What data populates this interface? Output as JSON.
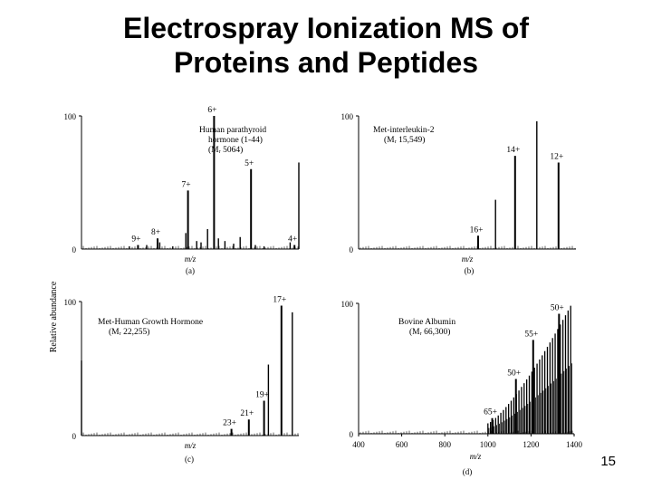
{
  "slide": {
    "title_line1": "Electrospray Ionization MS of",
    "title_line2": "Proteins and Peptides",
    "page_number": "15",
    "shared_ylabel": "Relative abundance"
  },
  "chart_data": [
    {
      "type": "bar",
      "panel_label": "(a)",
      "annotation_lines": [
        "Human parathyroid",
        "hormone (1-44)",
        "(Mᵣ 5064)"
      ],
      "xlabel": "m/z",
      "ylim": [
        0,
        100
      ],
      "yticks": [
        "100",
        "0"
      ],
      "xlim": [
        0,
        100
      ],
      "peaks": [
        {
          "label": "9+",
          "x": 26,
          "y": 3
        },
        {
          "label": "8+",
          "x": 35,
          "y": 8
        },
        {
          "label": "7+",
          "x": 49,
          "y": 44
        },
        {
          "label": "6+",
          "x": 61,
          "y": 100
        },
        {
          "label": "5+",
          "x": 78,
          "y": 60
        },
        {
          "label": "4+",
          "x": 98,
          "y": 3
        }
      ],
      "minor_peaks": [
        [
          22,
          2
        ],
        [
          30,
          3
        ],
        [
          36,
          5
        ],
        [
          42,
          2
        ],
        [
          48,
          12
        ],
        [
          53,
          6
        ],
        [
          55,
          5
        ],
        [
          58,
          15
        ],
        [
          63,
          8
        ],
        [
          66,
          6
        ],
        [
          70,
          4
        ],
        [
          73,
          9
        ],
        [
          80,
          3
        ],
        [
          84,
          2
        ],
        [
          96,
          5
        ],
        [
          100,
          65
        ]
      ]
    },
    {
      "type": "bar",
      "panel_label": "(b)",
      "annotation_lines": [
        "Met-interleukin-2",
        "(Mᵣ 15,549)"
      ],
      "xlabel": "m/z",
      "ylim": [
        0,
        100
      ],
      "yticks": [
        "100",
        "0"
      ],
      "xlim": [
        0,
        100
      ],
      "peaks": [
        {
          "label": "16+",
          "x": 55,
          "y": 10
        },
        {
          "label": "14+",
          "x": 72,
          "y": 70
        },
        {
          "label": "12+",
          "x": 92,
          "y": 65
        }
      ],
      "minor_peaks": [
        [
          63,
          37
        ],
        [
          82,
          96
        ]
      ]
    },
    {
      "type": "bar",
      "panel_label": "(c)",
      "annotation_lines": [
        "Met-Human Growth Hormone",
        "(Mᵣ 22,255)"
      ],
      "xlabel": "m/z",
      "ylim": [
        0,
        100
      ],
      "yticks": [
        "100",
        "0"
      ],
      "xlim": [
        0,
        100
      ],
      "peaks": [
        {
          "label": "23+",
          "x": 69,
          "y": 5
        },
        {
          "label": "21+",
          "x": 77,
          "y": 12
        },
        {
          "label": "19+",
          "x": 84,
          "y": 26
        },
        {
          "label": "17+",
          "x": 92,
          "y": 97
        }
      ],
      "minor_peaks": [
        [
          0,
          56
        ],
        [
          86,
          53
        ],
        [
          97,
          92
        ]
      ]
    },
    {
      "type": "bar",
      "panel_label": "(d)",
      "annotation_lines": [
        "Bovine Albumin",
        "(Mᵣ 66,300)"
      ],
      "xlabel": "m/z",
      "ylim": [
        0,
        100
      ],
      "yticks": [
        "100",
        "0"
      ],
      "xlim": [
        400,
        1400
      ],
      "xticks": [
        "400",
        "600",
        "800",
        "1000",
        "1200",
        "1400"
      ],
      "peaks": [
        {
          "label": "65+",
          "x": 1020,
          "y": 12
        },
        {
          "label": "50+",
          "x": 1330,
          "y": 92
        },
        {
          "label": "55+",
          "x": 1210,
          "y": 72
        },
        {
          "label": "50+",
          "x": 1130,
          "y": 42
        }
      ],
      "envelope": {
        "start": 1000,
        "end": 1390,
        "step": 12,
        "min_y": 8,
        "max_y": 100
      }
    }
  ]
}
